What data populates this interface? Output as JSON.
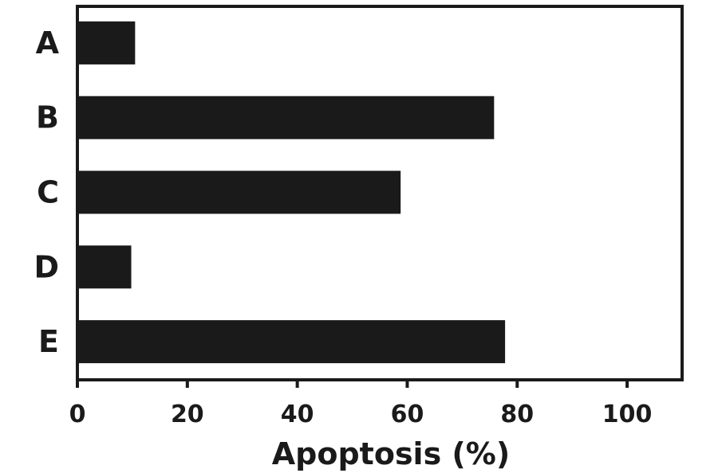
{
  "chart_data": {
    "type": "bar",
    "orientation": "horizontal",
    "categories": [
      "A",
      "B",
      "C",
      "D",
      "E"
    ],
    "values": [
      10.5,
      75.8,
      58.8,
      9.8,
      77.8
    ],
    "title": "",
    "xlabel": "Apoptosis (%)",
    "ylabel": "",
    "xlim": [
      0,
      110
    ],
    "xticks": [
      0,
      20,
      40,
      60,
      80,
      100
    ],
    "grid": false,
    "bar_color": "#1a1a1a",
    "axis_color": "#1a1a1a"
  }
}
